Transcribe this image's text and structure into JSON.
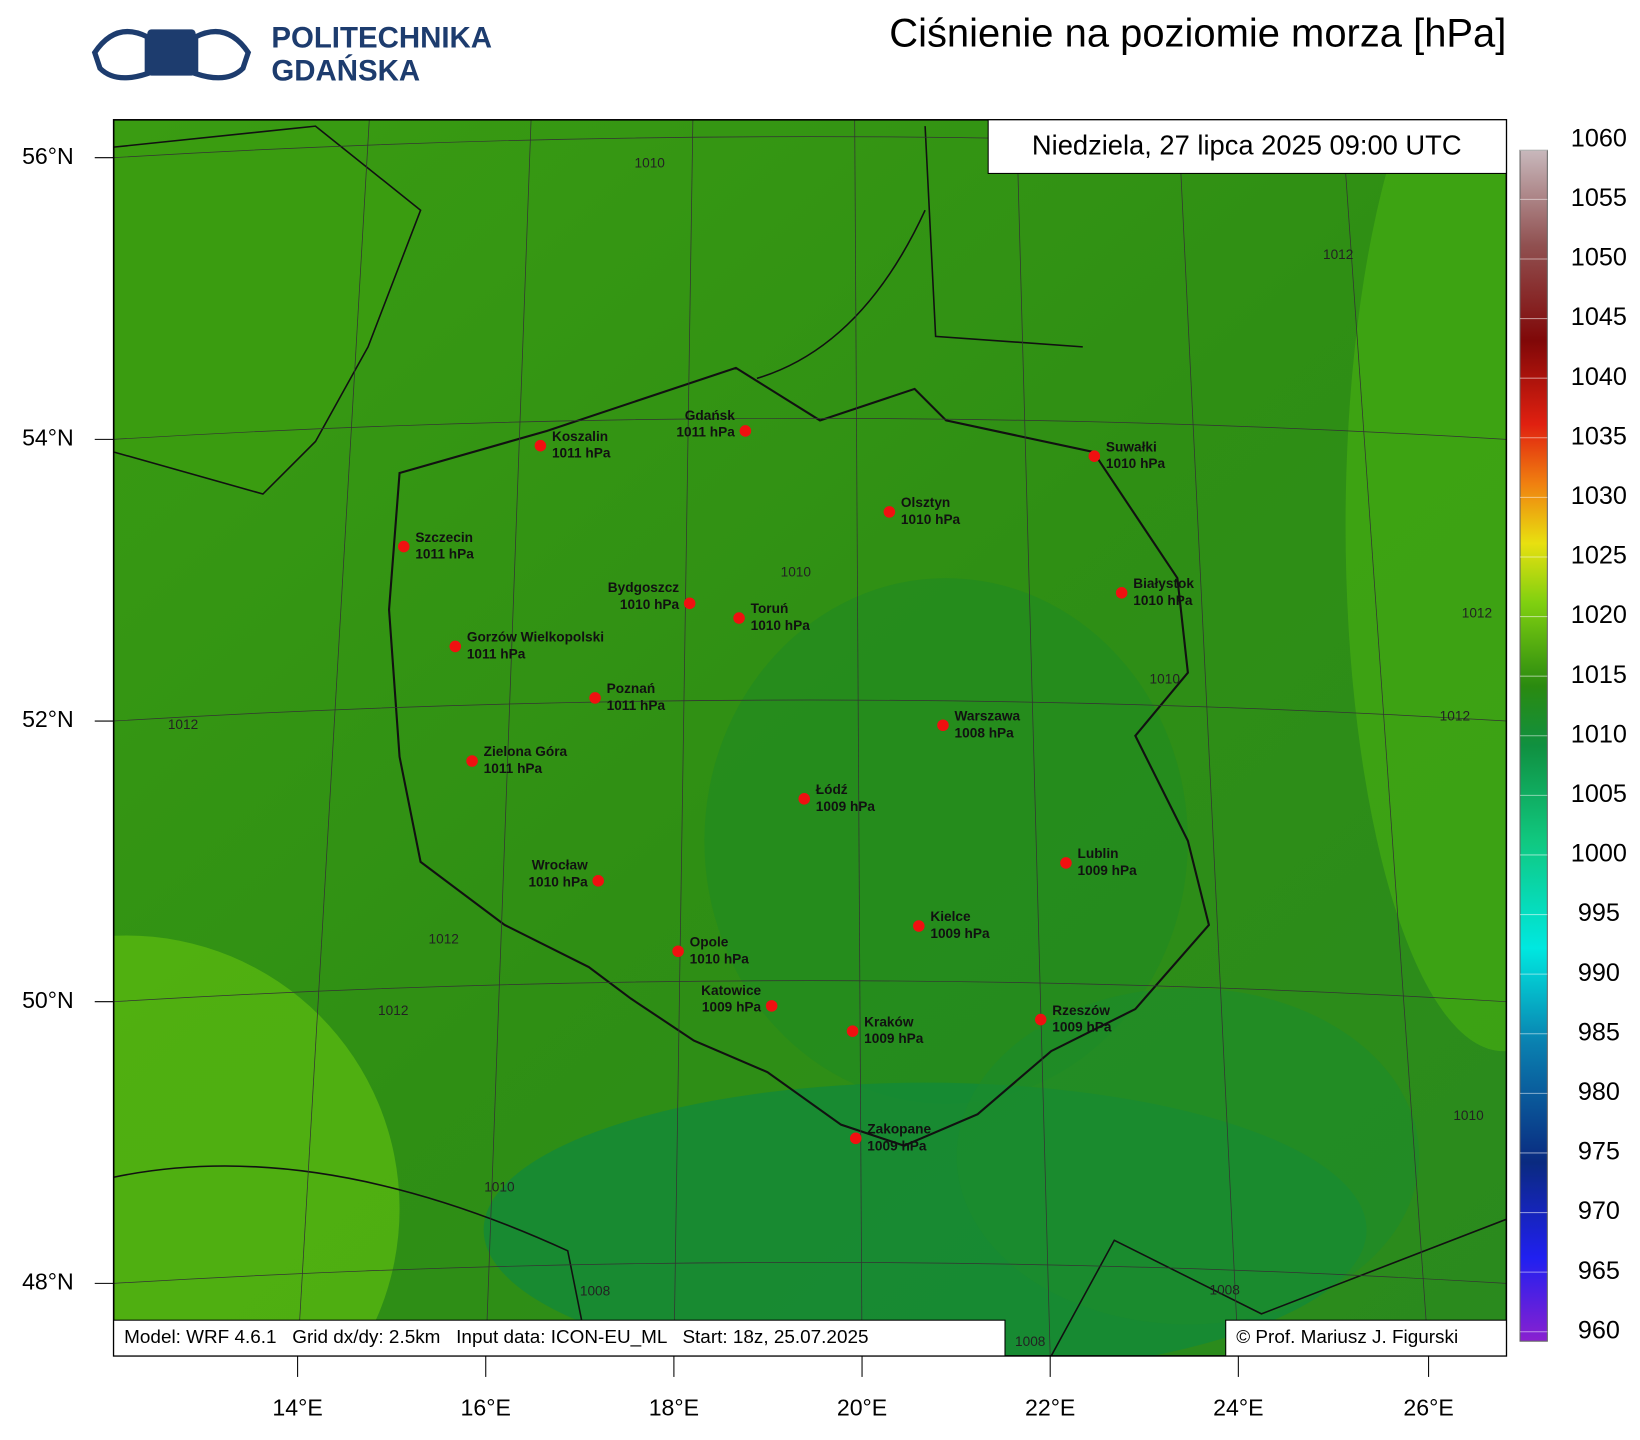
{
  "header": {
    "logo": [
      "POLITECHNIKA",
      "GDAŃSKA"
    ],
    "title": "Ciśnienie na poziomie morza [hPa]"
  },
  "map": {
    "date": "Niedziela, 27 lipca 2025 09:00 UTC",
    "cities": [
      {
        "name": "Koszalin",
        "pressure": "1011 hPa"
      },
      {
        "name": "Gdańsk",
        "pressure": "1011 hPa"
      },
      {
        "name": "Suwałki",
        "pressure": "1010 hPa"
      },
      {
        "name": "Olsztyn",
        "pressure": "1010 hPa"
      },
      {
        "name": "Szczecin",
        "pressure": "1011 hPa"
      },
      {
        "name": "Bydgoszcz",
        "pressure": "1010 hPa"
      },
      {
        "name": "Toruń",
        "pressure": "1010 hPa"
      },
      {
        "name": "Białystok",
        "pressure": "1010 hPa"
      },
      {
        "name": "Gorzów Wielkopolski",
        "pressure": "1011 hPa"
      },
      {
        "name": "Poznań",
        "pressure": "1011 hPa"
      },
      {
        "name": "Warszawa",
        "pressure": "1008 hPa"
      },
      {
        "name": "Zielona Góra",
        "pressure": "1011 hPa"
      },
      {
        "name": "Łódź",
        "pressure": "1009 hPa"
      },
      {
        "name": "Lublin",
        "pressure": "1009 hPa"
      },
      {
        "name": "Wrocław",
        "pressure": "1010 hPa"
      },
      {
        "name": "Kielce",
        "pressure": "1009 hPa"
      },
      {
        "name": "Opole",
        "pressure": "1010 hPa"
      },
      {
        "name": "Katowice",
        "pressure": "1009 hPa"
      },
      {
        "name": "Kraków",
        "pressure": "1009 hPa"
      },
      {
        "name": "Rzeszów",
        "pressure": "1009 hPa"
      },
      {
        "name": "Zakopane",
        "pressure": "1009 hPa"
      }
    ],
    "contour_labels": [
      "1010",
      "1012",
      "1010",
      "1012",
      "1010",
      "1012",
      "1012",
      "1012",
      "1012",
      "1010",
      "1010",
      "1008",
      "1008",
      "1008"
    ],
    "lat_labels": [
      "56°N",
      "54°N",
      "52°N",
      "50°N",
      "48°N"
    ],
    "lon_labels": [
      "14°E",
      "16°E",
      "18°E",
      "20°E",
      "22°E",
      "24°E",
      "26°E"
    ]
  },
  "colorbar": {
    "ticks": [
      1060,
      1055,
      1050,
      1045,
      1040,
      1035,
      1030,
      1025,
      1020,
      1015,
      1010,
      1005,
      1000,
      995,
      990,
      985,
      980,
      975,
      970,
      965,
      960
    ]
  },
  "footer": {
    "model": "Model: WRF 4.6.1   Grid dx/dy: 2.5km   Input data: ICON-EU_ML   Start: 18z, 25.07.2025",
    "author": "© Prof. Mariusz J. Figurski"
  }
}
